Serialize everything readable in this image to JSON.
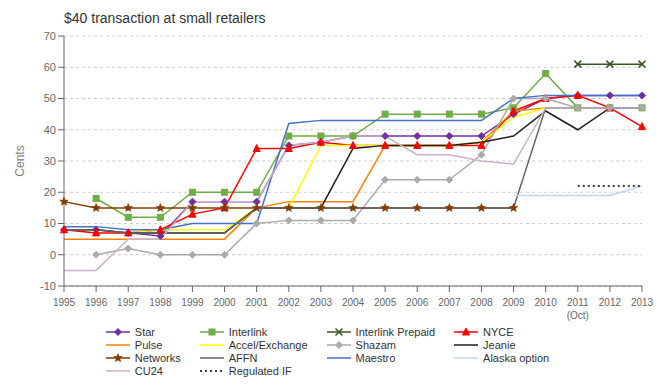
{
  "chart_data": {
    "type": "line",
    "title": "$40 transaction at small retailers",
    "y_label": "Cents",
    "categories": [
      "1995",
      "1996",
      "1997",
      "1998",
      "1999",
      "2000",
      "2001",
      "2002",
      "2003",
      "2004",
      "2005",
      "2006",
      "2007",
      "2008",
      "2009",
      "2010",
      "2011",
      "2012",
      "2013"
    ],
    "series": [
      {
        "name": "Star",
        "color": "#7030A0",
        "marker": "diamond",
        "values": [
          8,
          8,
          7,
          6,
          17,
          17,
          17,
          35,
          36,
          38,
          38,
          38,
          38,
          38,
          45,
          50,
          51,
          51,
          51
        ]
      },
      {
        "name": "Interlink",
        "color": "#70AD47",
        "marker": "square",
        "values": [
          null,
          18,
          12,
          12,
          20,
          20,
          20,
          38,
          38,
          38,
          45,
          45,
          45,
          45,
          47,
          58,
          47,
          47,
          47
        ]
      },
      {
        "name": "Interlink Prepaid",
        "color": "#375623",
        "marker": "x",
        "values": [
          null,
          null,
          null,
          null,
          null,
          null,
          null,
          null,
          null,
          null,
          null,
          null,
          null,
          null,
          null,
          null,
          61,
          61,
          61
        ]
      },
      {
        "name": "NYCE",
        "color": "#FF0000",
        "marker": "triangle",
        "values": [
          8,
          7,
          7,
          8,
          13,
          15,
          34,
          34,
          36,
          35,
          35,
          35,
          35,
          35,
          46,
          50,
          51,
          47,
          41
        ]
      },
      {
        "name": "Pulse",
        "color": "#FF8000",
        "values": [
          5,
          5,
          5,
          5,
          5,
          5,
          15,
          17,
          17,
          17,
          35,
          35,
          35,
          36,
          46,
          47,
          47,
          47,
          47
        ]
      },
      {
        "name": "Accel/Exchange",
        "color": "#FFFF00",
        "values": [
          8,
          8,
          7,
          8,
          8,
          8,
          15,
          15,
          35,
          35,
          35,
          35,
          35,
          36,
          44,
          47,
          47,
          47,
          47
        ]
      },
      {
        "name": "Shazam",
        "color": "#AEAAAA",
        "marker": "diamond",
        "values": [
          null,
          0,
          2,
          0,
          0,
          0,
          10,
          11,
          11,
          11,
          24,
          24,
          24,
          32,
          50,
          50,
          47,
          47,
          47
        ]
      },
      {
        "name": "Jeanie",
        "color": "#1F1F1F",
        "values": [
          8,
          8,
          7,
          7,
          7,
          7,
          15,
          15,
          15,
          34,
          35,
          35,
          35,
          36,
          38,
          46,
          40,
          47,
          47
        ]
      },
      {
        "name": "Networks",
        "color": "#833C00",
        "marker": "star",
        "values": [
          17,
          15,
          15,
          15,
          15,
          15,
          15,
          15,
          15,
          15,
          15,
          15,
          15,
          15,
          15,
          null,
          null,
          null,
          null
        ]
      },
      {
        "name": "AFFN",
        "color": "#636363",
        "values": [
          8,
          8,
          7,
          7,
          7,
          7,
          15,
          15,
          15,
          15,
          15,
          15,
          15,
          15,
          15,
          47,
          47,
          47,
          47
        ]
      },
      {
        "name": "Maestro",
        "color": "#4472C4",
        "values": [
          9,
          9,
          8,
          8,
          10,
          10,
          10,
          42,
          43,
          43,
          43,
          43,
          43,
          43,
          50,
          51,
          51,
          51,
          51
        ]
      },
      {
        "name": "Alaska option",
        "color": "#BDD7EE",
        "values": [
          null,
          null,
          null,
          null,
          null,
          null,
          null,
          null,
          null,
          null,
          null,
          null,
          null,
          null,
          19,
          19,
          19,
          19,
          22
        ]
      },
      {
        "name": "CU24",
        "color": "#C9B3C9",
        "values": [
          -5,
          -5,
          5,
          5,
          17,
          17,
          17,
          35,
          36,
          38,
          38,
          32,
          32,
          30,
          29,
          47,
          47,
          47,
          47
        ]
      },
      {
        "name": "Regulated IF",
        "color": "#000000",
        "line_style": "dotted",
        "values": [
          null,
          null,
          null,
          null,
          null,
          null,
          null,
          null,
          null,
          null,
          null,
          null,
          null,
          null,
          null,
          null,
          22,
          22,
          22
        ]
      }
    ],
    "ylim": [
      -10,
      70
    ],
    "yticks": [
      -10,
      0,
      10,
      20,
      30,
      40,
      50,
      60,
      70
    ],
    "grid": true,
    "legend": "bottom",
    "annotations": [
      {
        "text": "(Oct)",
        "category": "2011"
      }
    ]
  }
}
